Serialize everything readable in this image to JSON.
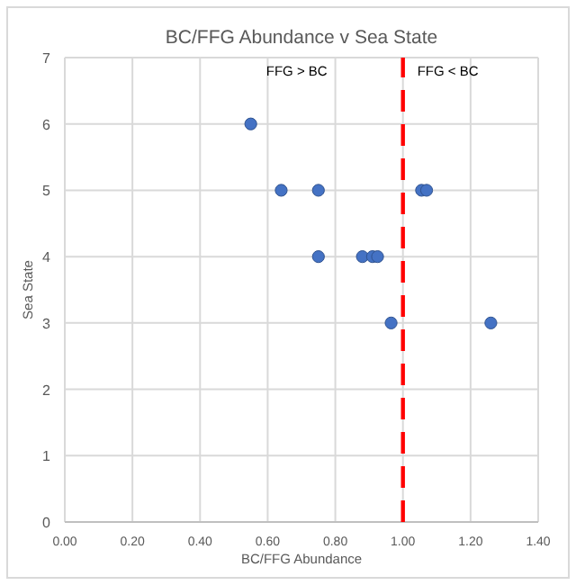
{
  "chart_data": {
    "type": "scatter",
    "title": "BC/FFG Abundance v Sea State",
    "xlabel": "BC/FFG Abundance",
    "ylabel": "Sea State",
    "x": [
      0.55,
      0.64,
      0.75,
      1.055,
      1.07,
      0.75,
      0.88,
      0.91,
      0.925,
      0.965,
      1.26
    ],
    "series": [
      {
        "color": "#4472c4",
        "values": [
          6,
          5,
          5,
          5,
          5,
          4,
          4,
          4,
          4,
          3,
          3
        ]
      }
    ],
    "xlim": [
      0,
      1.4
    ],
    "xticks": [
      {
        "value": 0,
        "label": "0.00"
      },
      {
        "value": 0.2,
        "label": "0.20"
      },
      {
        "value": 0.4,
        "label": "0.40"
      },
      {
        "value": 0.6,
        "label": "0.60"
      },
      {
        "value": 0.8,
        "label": "0.80"
      },
      {
        "value": 1,
        "label": "1.00"
      },
      {
        "value": 1.2,
        "label": "1.20"
      },
      {
        "value": 1.4,
        "label": "1.40"
      }
    ],
    "ylim": [
      0,
      7
    ],
    "yticks": [
      0,
      1,
      2,
      3,
      4,
      5,
      6,
      7
    ],
    "grid": true,
    "marker": "circle",
    "ref_lines": [
      {
        "axis": "x",
        "value": 1,
        "color": "#ff0000",
        "line_style": "dashed"
      }
    ],
    "annotations": [
      "FFG > BC",
      "FFG < BC"
    ]
  }
}
